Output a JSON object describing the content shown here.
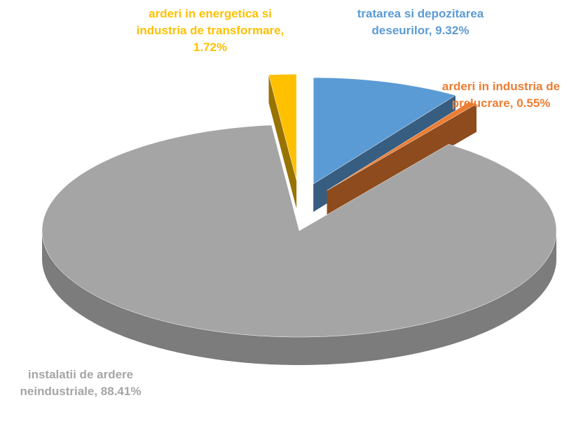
{
  "chart_data": {
    "type": "pie",
    "categories": [
      "tratarea si depozitarea deseurilor,",
      "arderi in industria de prelucrare,",
      "instalatii de ardere neindustriale,",
      "arderi in energetica si industria de transformare,"
    ],
    "values": [
      9.32,
      0.55,
      88.41,
      1.72
    ],
    "value_labels": [
      "9.32%",
      "0.55%",
      "88.41%",
      "1.72%"
    ],
    "colors": [
      "#5b9bd5",
      "#ed7d31",
      "#a5a5a5",
      "#ffc000"
    ]
  }
}
